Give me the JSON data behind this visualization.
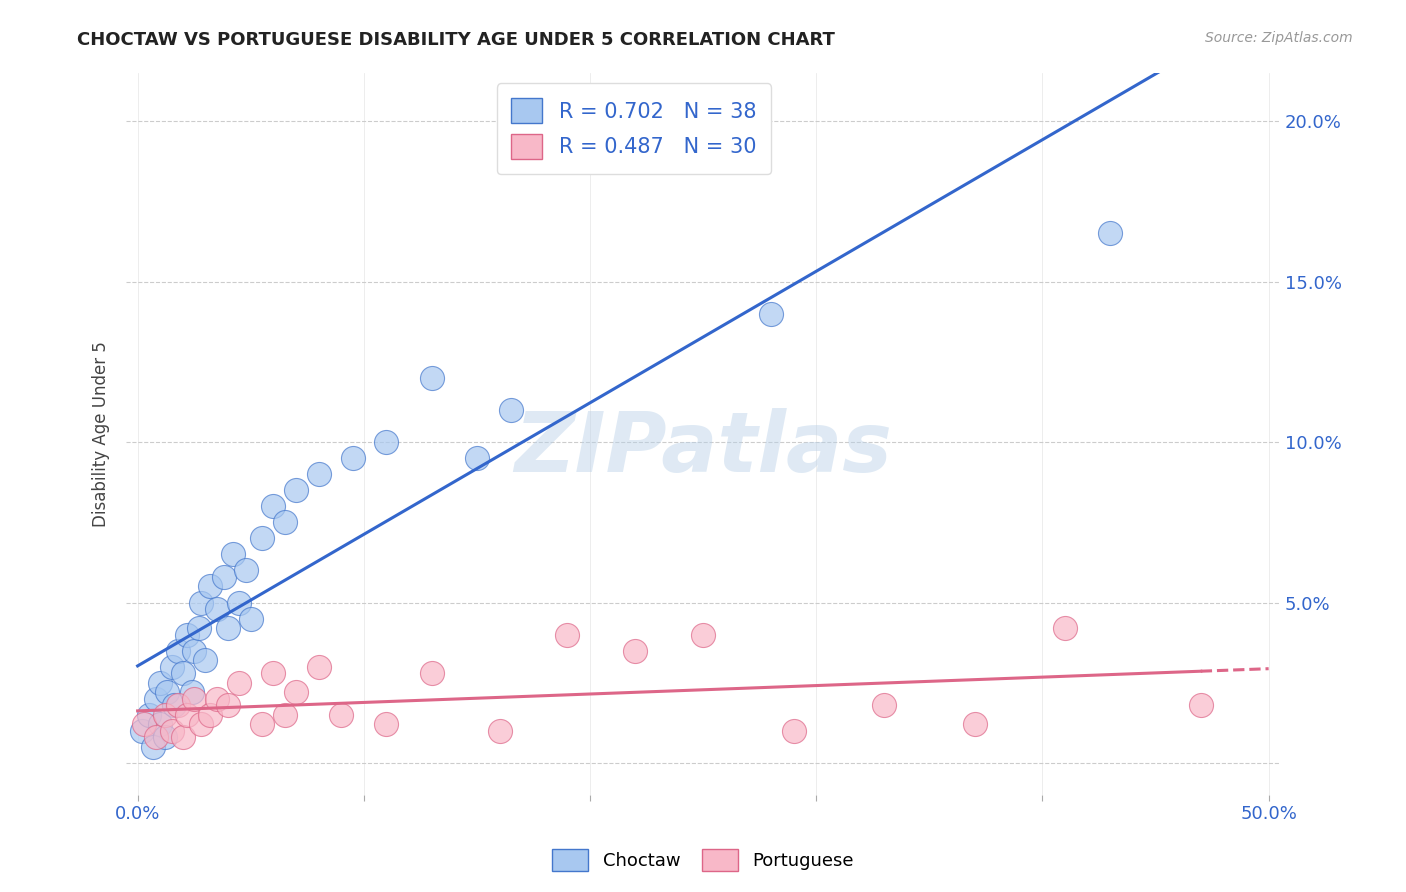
{
  "title": "CHOCTAW VS PORTUGUESE DISABILITY AGE UNDER 5 CORRELATION CHART",
  "source": "Source: ZipAtlas.com",
  "ylabel": "Disability Age Under 5",
  "watermark": "ZIPatlas",
  "choctaw_R": 0.702,
  "choctaw_N": 38,
  "portuguese_R": 0.487,
  "portuguese_N": 30,
  "xlim": [
    -0.005,
    0.505
  ],
  "ylim": [
    -0.01,
    0.215
  ],
  "x_ticks": [
    0.0,
    0.1,
    0.2,
    0.3,
    0.4,
    0.5
  ],
  "y_ticks": [
    0.0,
    0.05,
    0.1,
    0.15,
    0.2
  ],
  "choctaw_color": "#A8C8F0",
  "choctaw_edge_color": "#4477CC",
  "choctaw_line_color": "#3366CC",
  "portuguese_color": "#F8B8C8",
  "portuguese_edge_color": "#DD6688",
  "portuguese_line_color": "#DD6688",
  "background_color": "#FFFFFF",
  "grid_color": "#CCCCCC",
  "tick_color": "#3366CC",
  "choctaw_x": [
    0.002,
    0.005,
    0.007,
    0.008,
    0.01,
    0.01,
    0.012,
    0.013,
    0.015,
    0.016,
    0.018,
    0.02,
    0.022,
    0.024,
    0.025,
    0.027,
    0.028,
    0.03,
    0.032,
    0.035,
    0.038,
    0.04,
    0.042,
    0.045,
    0.048,
    0.05,
    0.055,
    0.06,
    0.065,
    0.07,
    0.08,
    0.095,
    0.11,
    0.13,
    0.15,
    0.165,
    0.28,
    0.43
  ],
  "choctaw_y": [
    0.01,
    0.015,
    0.005,
    0.02,
    0.025,
    0.012,
    0.008,
    0.022,
    0.03,
    0.018,
    0.035,
    0.028,
    0.04,
    0.022,
    0.035,
    0.042,
    0.05,
    0.032,
    0.055,
    0.048,
    0.058,
    0.042,
    0.065,
    0.05,
    0.06,
    0.045,
    0.07,
    0.08,
    0.075,
    0.085,
    0.09,
    0.095,
    0.1,
    0.12,
    0.095,
    0.11,
    0.14,
    0.165
  ],
  "portuguese_x": [
    0.003,
    0.008,
    0.012,
    0.015,
    0.018,
    0.02,
    0.022,
    0.025,
    0.028,
    0.032,
    0.035,
    0.04,
    0.045,
    0.055,
    0.06,
    0.065,
    0.07,
    0.08,
    0.09,
    0.11,
    0.13,
    0.16,
    0.19,
    0.22,
    0.25,
    0.29,
    0.33,
    0.37,
    0.41,
    0.47
  ],
  "portuguese_y": [
    0.012,
    0.008,
    0.015,
    0.01,
    0.018,
    0.008,
    0.015,
    0.02,
    0.012,
    0.015,
    0.02,
    0.018,
    0.025,
    0.012,
    0.028,
    0.015,
    0.022,
    0.03,
    0.015,
    0.012,
    0.028,
    0.01,
    0.04,
    0.035,
    0.04,
    0.01,
    0.018,
    0.012,
    0.042,
    0.018
  ]
}
